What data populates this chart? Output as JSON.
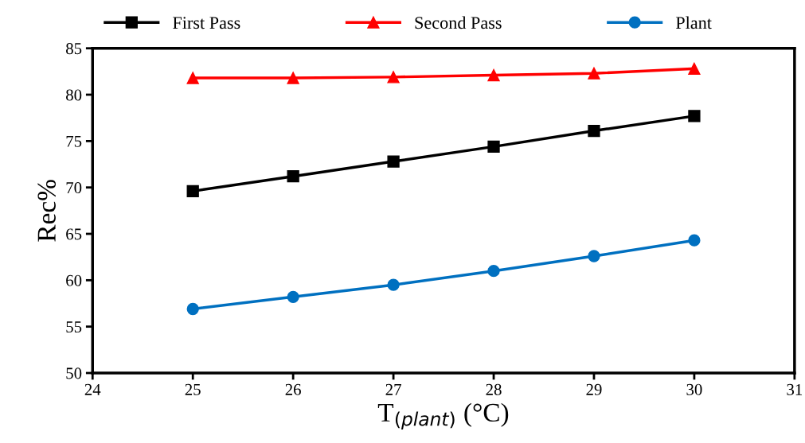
{
  "chart_data": {
    "type": "line",
    "xlabel": "T$_{(plant)}$ (°C)",
    "ylabel": "Rec%",
    "x": [
      25,
      26,
      27,
      28,
      29,
      30
    ],
    "series": [
      {
        "name": "First Pass",
        "color": "#000000",
        "marker": "square",
        "values": [
          69.6,
          71.2,
          72.8,
          74.4,
          76.1,
          77.7
        ]
      },
      {
        "name": "Second Pass",
        "color": "#ff0000",
        "marker": "triangle",
        "values": [
          81.8,
          81.8,
          81.9,
          82.1,
          82.3,
          82.8
        ]
      },
      {
        "name": "Plant",
        "color": "#0070c0",
        "marker": "circle",
        "values": [
          56.9,
          58.2,
          59.5,
          61.0,
          62.6,
          64.3
        ]
      }
    ],
    "xlim": [
      24,
      31
    ],
    "xticks": [
      24,
      25,
      26,
      27,
      28,
      29,
      30,
      31
    ],
    "ylim": [
      50,
      85
    ],
    "yticks": [
      50,
      55,
      60,
      65,
      70,
      75,
      80,
      85
    ],
    "grid": false,
    "legend": "top",
    "line_style": "solid"
  }
}
